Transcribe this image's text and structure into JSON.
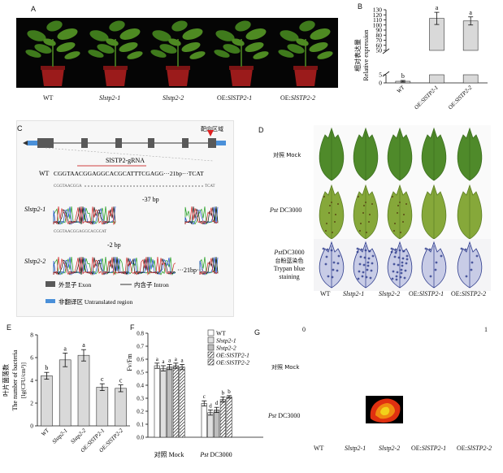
{
  "panels": {
    "a": "A",
    "b": "B",
    "c": "C",
    "d": "D",
    "e": "E",
    "f": "F",
    "g": "G"
  },
  "panel_a": {
    "genotypes": [
      "WT",
      "Slstp2-1",
      "Slstp2-2",
      "OE:SlSTP2-1",
      "OE:SlSTP2-2"
    ]
  },
  "panel_c": {
    "target_region": "靶向区域",
    "grna_label": "SlSTP2-gRNA",
    "wt_label": "WT",
    "wt_seq": "CGGTAACGGAGGCACGCATTTCGAGG···21bp···TCAT",
    "mut1_label": "Slstp2-1",
    "mut1_seq": "CGGTAACGGA",
    "mut1_tail": "TCAT",
    "mut1_deletion": "-37 bp",
    "mut2_label": "Slstp2-2",
    "mut2_seq": "CGGTAACGGAGGCACGCAT",
    "mut2_deletion": "-2 bp",
    "mut2_tail": "···21bp···",
    "legend_exon": "外显子 Exon",
    "legend_intron": "内含子 Intron",
    "legend_utr": "非翻译区 Untranslated region"
  },
  "panel_d": {
    "row1": "对照 Mock",
    "row2_italic": "Pst",
    "row2_rest": "DC3000",
    "row3_line1_italic": "Pst",
    "row3_line1_rest": "DC3000",
    "row3_line2": "台盼蓝染色",
    "row3_line3": "Trypan blue staining",
    "genotypes": [
      "WT",
      "Slstp2-1",
      "Slstp2-2",
      "OE:SlSTP2-1",
      "OE:SlSTP2-2"
    ]
  },
  "panel_g": {
    "scale_min": "0",
    "scale_max": "1",
    "row1": "对照 Mock",
    "row2_italic": "Pst",
    "row2_rest": "DC3000",
    "genotypes": [
      "WT",
      "Slstp2-1",
      "Slstp2-2",
      "OE:SlSTP2-1",
      "OE:SlSTP2-2"
    ]
  },
  "colors": {
    "bar_fill": "#d9d9d9",
    "exon": "#595959",
    "utr": "#4a90d9",
    "target_marker": "#e02020",
    "grna_line": "#d04040"
  },
  "chart_data": [
    {
      "type": "bar",
      "panel": "B",
      "ylabel_cn": "相对表达量",
      "ylabel_en": "Relative expression",
      "categories": [
        "WT",
        "OE:SlSTP2-1",
        "OE:SlSTP2-2"
      ],
      "values": [
        1,
        113,
        108
      ],
      "errors": [
        0.5,
        12,
        8
      ],
      "letters": [
        "b",
        "a",
        "a"
      ],
      "yticks": [
        0,
        5,
        50,
        60,
        70,
        80,
        90,
        100,
        110,
        120,
        130
      ],
      "axis_break": [
        5,
        50
      ]
    },
    {
      "type": "bar",
      "panel": "E",
      "ylabel_cn": "叶片菌落数",
      "ylabel_en": "The number of bacteria",
      "ylabel_unit": "[lg(CFU/cm²)]",
      "categories": [
        "WT",
        "Slstp2-1",
        "Slstp2-2",
        "OE:SlSTP2-1",
        "OE:SlSTP2-2"
      ],
      "values": [
        4.4,
        5.8,
        6.2,
        3.4,
        3.3
      ],
      "errors": [
        0.3,
        0.6,
        0.5,
        0.3,
        0.3
      ],
      "letters": [
        "b",
        "a",
        "a",
        "c",
        "c"
      ],
      "ylim": [
        0,
        8
      ],
      "yticks": [
        0,
        2,
        4,
        6,
        8
      ]
    },
    {
      "type": "bar",
      "panel": "F",
      "ylabel": "Fv/Fm",
      "ylim": [
        0,
        0.8
      ],
      "yticks": [
        0.0,
        0.1,
        0.2,
        0.3,
        0.4,
        0.5,
        0.6,
        0.7,
        0.8
      ],
      "groups": [
        {
          "label_cn": "对照",
          "label_en": "Mock",
          "values": [
            0.55,
            0.53,
            0.54,
            0.55,
            0.54
          ],
          "errors": [
            0.02,
            0.02,
            0.02,
            0.02,
            0.02
          ],
          "letters": [
            "a",
            "a",
            "a",
            "a",
            "a"
          ]
        },
        {
          "label_italic": "Pst",
          "label_rest": "DC3000",
          "values": [
            0.26,
            0.19,
            0.21,
            0.29,
            0.31
          ],
          "errors": [
            0.02,
            0.02,
            0.02,
            0.02,
            0.01
          ],
          "letters": [
            "c",
            "d",
            "d",
            "b",
            "b"
          ]
        }
      ],
      "series": [
        {
          "name": "WT"
        },
        {
          "name": "Slstp2-1"
        },
        {
          "name": "Slstp2-2"
        },
        {
          "name": "OE:SlSTP2-1"
        },
        {
          "name": "OE:SlSTP2-2"
        }
      ]
    }
  ]
}
